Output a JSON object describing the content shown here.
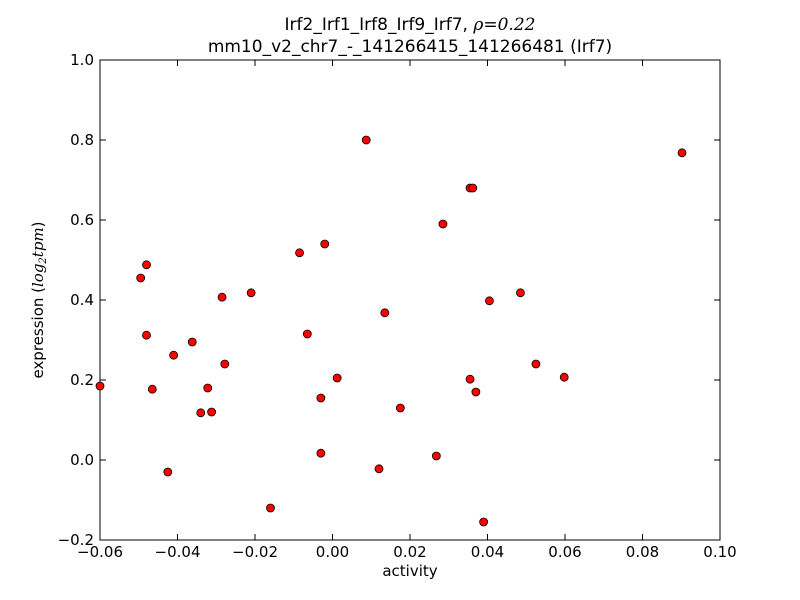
{
  "chart_data": {
    "type": "scatter",
    "title_line1_prefix": "Irf2_Irf1_Irf8_Irf9_Irf7, ",
    "title_rho_symbol": "ρ",
    "title_rho_value": "=0.22",
    "title_line2": "mm10_v2_chr7_-_141266415_141266481 (Irf7)",
    "xlabel": "activity",
    "ylabel_prefix": "expression (",
    "ylabel_math": "log",
    "ylabel_sub": "2",
    "ylabel_math2": "tpm",
    "ylabel_suffix": ")",
    "xlim": [
      -0.06,
      0.1
    ],
    "ylim": [
      -0.2,
      1.0
    ],
    "xticks": [
      -0.06,
      -0.04,
      -0.02,
      0.0,
      0.02,
      0.04,
      0.06,
      0.08,
      0.1
    ],
    "xtick_labels": [
      "−0.06",
      "−0.04",
      "−0.02",
      "0.00",
      "0.02",
      "0.04",
      "0.06",
      "0.08",
      "0.10"
    ],
    "yticks": [
      -0.2,
      0.0,
      0.2,
      0.4,
      0.6,
      0.8,
      1.0
    ],
    "ytick_labels": [
      "−0.2",
      "0.0",
      "0.2",
      "0.4",
      "0.6",
      "0.8",
      "1.0"
    ],
    "grid": false,
    "marker_color": "#ff0000",
    "marker_edge_color": "#000000",
    "points": [
      {
        "x": -0.06,
        "y": 0.185
      },
      {
        "x": -0.0495,
        "y": 0.455
      },
      {
        "x": -0.048,
        "y": 0.488
      },
      {
        "x": -0.048,
        "y": 0.312
      },
      {
        "x": -0.0465,
        "y": 0.177
      },
      {
        "x": -0.0425,
        "y": -0.03
      },
      {
        "x": -0.041,
        "y": 0.262
      },
      {
        "x": -0.0362,
        "y": 0.295
      },
      {
        "x": -0.034,
        "y": 0.118
      },
      {
        "x": -0.0322,
        "y": 0.18
      },
      {
        "x": -0.0312,
        "y": 0.12
      },
      {
        "x": -0.0285,
        "y": 0.407
      },
      {
        "x": -0.0278,
        "y": 0.24
      },
      {
        "x": -0.021,
        "y": 0.418
      },
      {
        "x": -0.016,
        "y": -0.12
      },
      {
        "x": -0.0085,
        "y": 0.518
      },
      {
        "x": -0.0065,
        "y": 0.315
      },
      {
        "x": -0.003,
        "y": 0.155
      },
      {
        "x": -0.003,
        "y": 0.017
      },
      {
        "x": -0.002,
        "y": 0.54
      },
      {
        "x": 0.0012,
        "y": 0.205
      },
      {
        "x": 0.0087,
        "y": 0.8
      },
      {
        "x": 0.012,
        "y": -0.022
      },
      {
        "x": 0.0135,
        "y": 0.368
      },
      {
        "x": 0.0175,
        "y": 0.13
      },
      {
        "x": 0.0268,
        "y": 0.01
      },
      {
        "x": 0.0285,
        "y": 0.59
      },
      {
        "x": 0.0355,
        "y": 0.68
      },
      {
        "x": 0.0362,
        "y": 0.68
      },
      {
        "x": 0.0355,
        "y": 0.202
      },
      {
        "x": 0.037,
        "y": 0.17
      },
      {
        "x": 0.039,
        "y": -0.155
      },
      {
        "x": 0.0405,
        "y": 0.398
      },
      {
        "x": 0.0485,
        "y": 0.418
      },
      {
        "x": 0.0525,
        "y": 0.24
      },
      {
        "x": 0.0598,
        "y": 0.207
      },
      {
        "x": 0.0902,
        "y": 0.768
      }
    ]
  }
}
